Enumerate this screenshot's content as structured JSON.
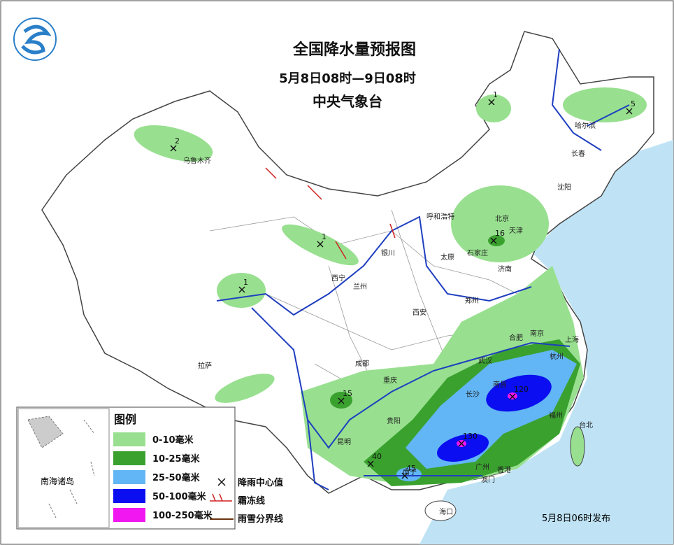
{
  "header": {
    "title": "全国降水量预报图",
    "period": "5月8日08时—9日08时",
    "agency": "中央气象台"
  },
  "legend": {
    "title": "图例",
    "levels": [
      {
        "label": "0-10毫米",
        "color": "#98e08f"
      },
      {
        "label": "10-25毫米",
        "color": "#3aa12f"
      },
      {
        "label": "25-50毫米",
        "color": "#62b6f5"
      },
      {
        "label": "50-100毫米",
        "color": "#0a0ef0"
      },
      {
        "label": "100-250毫米",
        "color": "#f017f0"
      }
    ],
    "symbols": [
      "降雨中心值",
      "霜冻线",
      "雨雪分界线"
    ]
  },
  "inset": {
    "label": "南海诸岛"
  },
  "cities": [
    "乌鲁木齐",
    "哈尔滨",
    "长春",
    "沈阳",
    "呼和浩特",
    "北京",
    "天津",
    "石家庄",
    "太原",
    "济南",
    "银川",
    "西宁",
    "兰州",
    "郑州",
    "西安",
    "合肥",
    "南京",
    "上海",
    "拉萨",
    "成都",
    "武汉",
    "杭州",
    "重庆",
    "长沙",
    "南昌",
    "贵阳",
    "福州",
    "昆明",
    "台北",
    "南宁",
    "广州",
    "香港",
    "澳门",
    "海口"
  ],
  "rain_centers": [
    2,
    1,
    5,
    1,
    16,
    1,
    15,
    120,
    130,
    40,
    45
  ],
  "footer": "5月8日06时发布"
}
